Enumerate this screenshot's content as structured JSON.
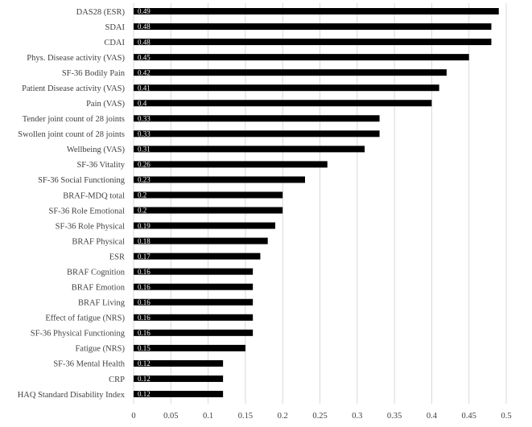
{
  "chart_data": {
    "type": "bar",
    "orientation": "horizontal",
    "categories": [
      "DAS28 (ESR)",
      "SDAI",
      "CDAI",
      "Phys. Disease activity (VAS)",
      "SF-36 Bodily Pain",
      "Patient Disease activity (VAS)",
      "Pain (VAS)",
      "Tender joint count of 28 joints",
      "Swollen joint count of 28 joints",
      "Wellbeing (VAS)",
      "SF-36 Vitality",
      "SF-36 Social Functioning",
      "BRAF-MDQ total",
      "SF-36 Role Emotional",
      "SF-36 Role Physical",
      "BRAF Physical",
      "ESR",
      "BRAF Cognition",
      "BRAF Emotion",
      "BRAF Living",
      "Effect of fatigue (NRS)",
      "SF-36 Physical Functioning",
      "Fatigue (NRS)",
      "SF-36 Mental Health",
      "CRP",
      "HAQ Standard Disability Index"
    ],
    "values": [
      0.49,
      0.48,
      0.48,
      0.45,
      0.42,
      0.41,
      0.4,
      0.33,
      0.33,
      0.31,
      0.26,
      0.23,
      0.2,
      0.2,
      0.19,
      0.18,
      0.17,
      0.16,
      0.16,
      0.16,
      0.16,
      0.16,
      0.15,
      0.12,
      0.12,
      0.12
    ],
    "data_labels": [
      "0.49",
      "0.48",
      "0.48",
      "0.45",
      "0.42",
      "0.41",
      "0.4",
      "0.33",
      "0.33",
      "0.31",
      "0.26",
      "0.23",
      "0.2",
      "0.2",
      "0.19",
      "0.18",
      "0.17",
      "0.16",
      "0.16",
      "0.16",
      "0.16",
      "0.16",
      "0.15",
      "0.12",
      "0.12",
      "0.12"
    ],
    "x_ticks": [
      "0",
      "0.05",
      "0.1",
      "0.15",
      "0.2",
      "0.25",
      "0.3",
      "0.35",
      "0.4",
      "0.45",
      "0.5"
    ],
    "xlim": [
      0,
      0.5
    ],
    "title": "",
    "xlabel": "",
    "ylabel": "",
    "grid": "vertical",
    "bar_color": "#000000",
    "grid_color": "#d9d9d9"
  }
}
